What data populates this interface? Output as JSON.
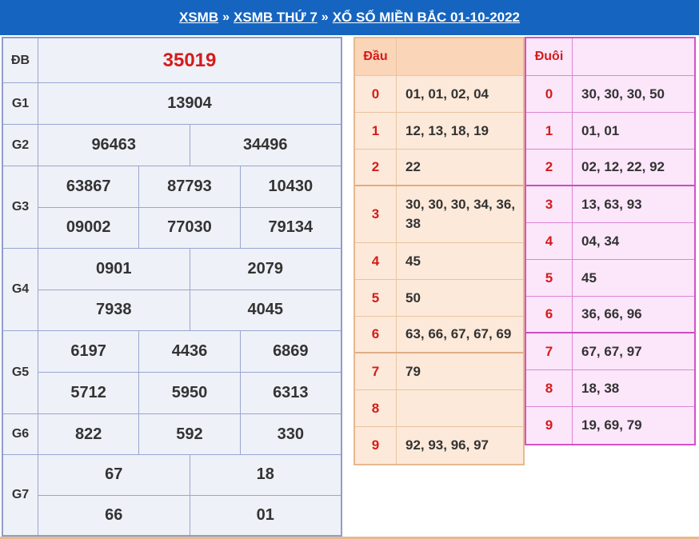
{
  "header": {
    "crumb1": "XSMB",
    "crumb2": "XSMB THỨ 7",
    "crumb3": "XỔ SỐ MIỀN BẮC 01-10-2022",
    "separator": "»"
  },
  "prizes": {
    "db": {
      "label": "ĐB",
      "values": [
        "35019"
      ]
    },
    "g1": {
      "label": "G1",
      "values": [
        "13904"
      ]
    },
    "g2": {
      "label": "G2",
      "values": [
        "96463",
        "34496"
      ]
    },
    "g3": {
      "label": "G3",
      "values": [
        "63867",
        "87793",
        "10430",
        "09002",
        "77030",
        "79134"
      ]
    },
    "g4": {
      "label": "G4",
      "values": [
        "0901",
        "2079",
        "7938",
        "4045"
      ]
    },
    "g5": {
      "label": "G5",
      "values": [
        "6197",
        "4436",
        "6869",
        "5712",
        "5950",
        "6313"
      ]
    },
    "g6": {
      "label": "G6",
      "values": [
        "822",
        "592",
        "330"
      ]
    },
    "g7": {
      "label": "G7",
      "values": [
        "67",
        "18",
        "66",
        "01"
      ]
    }
  },
  "dau": {
    "header": "Đầu",
    "rows": [
      {
        "digit": "0",
        "values": "01, 01, 02, 04"
      },
      {
        "digit": "1",
        "values": "12, 13, 18, 19"
      },
      {
        "digit": "2",
        "values": "22"
      },
      {
        "digit": "3",
        "values": "30, 30, 30, 34, 36, 38"
      },
      {
        "digit": "4",
        "values": "45"
      },
      {
        "digit": "5",
        "values": "50"
      },
      {
        "digit": "6",
        "values": "63, 66, 67, 67, 69"
      },
      {
        "digit": "7",
        "values": "79"
      },
      {
        "digit": "8",
        "values": ""
      },
      {
        "digit": "9",
        "values": "92, 93, 96, 97"
      }
    ]
  },
  "duoi": {
    "header": "Đuôi",
    "rows": [
      {
        "digit": "0",
        "values": "30, 30, 30, 50"
      },
      {
        "digit": "1",
        "values": "01, 01"
      },
      {
        "digit": "2",
        "values": "02, 12, 22, 92"
      },
      {
        "digit": "3",
        "values": "13, 63, 93"
      },
      {
        "digit": "4",
        "values": "04, 34"
      },
      {
        "digit": "5",
        "values": "45"
      },
      {
        "digit": "6",
        "values": "36, 66, 96"
      },
      {
        "digit": "7",
        "values": "67, 67, 97"
      },
      {
        "digit": "8",
        "values": "18, 38"
      },
      {
        "digit": "9",
        "values": "19, 69, 79"
      }
    ]
  },
  "colors": {
    "header_bg": "#1565c0",
    "special_prize": "#d51b1b",
    "dau_border": "#e6b98f",
    "duoi_border": "#d252c8"
  }
}
